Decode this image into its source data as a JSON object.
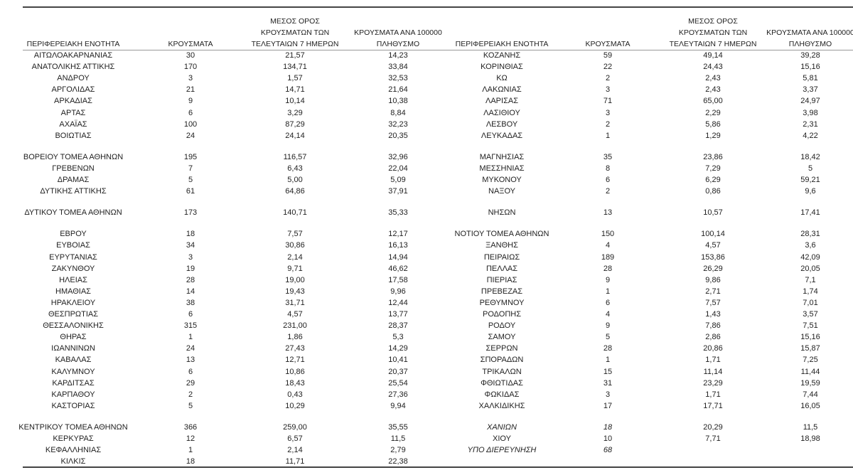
{
  "left_table": {
    "header": [
      [
        "ΠΕΡΙΦΕΡΕΙΑΚΗ ΕΝΟΤΗΤΑ"
      ],
      [
        "ΚΡΟΥΣΜΑΤΑ"
      ],
      [
        "ΜΕΣΟΣ ΟΡΟΣ",
        "ΚΡΟΥΣΜΑΤΩΝ ΤΩΝ",
        "ΤΕΛΕΥΤΑΙΩΝ 7 ΗΜΕΡΩΝ"
      ],
      [
        "ΚΡΟΥΣΜΑΤΑ ΑΝΑ 100000",
        "ΠΛΗΘΥΣΜΟ"
      ]
    ],
    "rows": [
      [
        "ΑΙΤΩΛΟΑΚΑΡΝΑΝΙΑΣ",
        "30",
        "21,57",
        "14,23"
      ],
      [
        "ΑΝΑΤΟΛΙΚΗΣ ΑΤΤΙΚΗΣ",
        "170",
        "134,71",
        "33,84"
      ],
      [
        "ΑΝΔΡΟΥ",
        "3",
        "1,57",
        "32,53"
      ],
      [
        "ΑΡΓΟΛΙΔΑΣ",
        "21",
        "14,71",
        "21,64"
      ],
      [
        "ΑΡΚΑΔΙΑΣ",
        "9",
        "10,14",
        "10,38"
      ],
      [
        "ΑΡΤΑΣ",
        "6",
        "3,29",
        "8,84"
      ],
      [
        "ΑΧΑΪΑΣ",
        "100",
        "87,29",
        "32,23"
      ],
      [
        "ΒΟΙΩΤΙΑΣ",
        "24",
        "24,14",
        "20,35"
      ],
      [
        "ΒΟΡΕΙΟΥ ΤΟΜΕΑ ΑΘΗΝΩΝ",
        "195",
        "116,57",
        "32,96"
      ],
      [
        "ΓΡΕΒΕΝΩΝ",
        "7",
        "6,43",
        "22,04"
      ],
      [
        "ΔΡΑΜΑΣ",
        "5",
        "5,00",
        "5,09"
      ],
      [
        "ΔΥΤΙΚΗΣ ΑΤΤΙΚΗΣ",
        "61",
        "64,86",
        "37,91"
      ],
      [
        "ΔΥΤΙΚΟΥ ΤΟΜΕΑ ΑΘΗΝΩΝ",
        "173",
        "140,71",
        "35,33"
      ],
      [
        "ΕΒΡΟΥ",
        "18",
        "7,57",
        "12,17"
      ],
      [
        "ΕΥΒΟΙΑΣ",
        "34",
        "30,86",
        "16,13"
      ],
      [
        "ΕΥΡΥΤΑΝΙΑΣ",
        "3",
        "2,14",
        "14,94"
      ],
      [
        "ΖΑΚΥΝΘΟΥ",
        "19",
        "9,71",
        "46,62"
      ],
      [
        "ΗΛΕΙΑΣ",
        "28",
        "19,00",
        "17,58"
      ],
      [
        "ΗΜΑΘΙΑΣ",
        "14",
        "19,43",
        "9,96"
      ],
      [
        "ΗΡΑΚΛΕΙΟΥ",
        "38",
        "31,71",
        "12,44"
      ],
      [
        "ΘΕΣΠΡΩΤΙΑΣ",
        "6",
        "4,57",
        "13,77"
      ],
      [
        "ΘΕΣΣΑΛΟΝΙΚΗΣ",
        "315",
        "231,00",
        "28,37"
      ],
      [
        "ΘΗΡΑΣ",
        "1",
        "1,86",
        "5,3"
      ],
      [
        "ΙΩΑΝΝΙΝΩΝ",
        "24",
        "27,43",
        "14,29"
      ],
      [
        "ΚΑΒΑΛΑΣ",
        "13",
        "12,71",
        "10,41"
      ],
      [
        "ΚΑΛΥΜΝΟΥ",
        "6",
        "10,86",
        "20,37"
      ],
      [
        "ΚΑΡΔΙΤΣΑΣ",
        "29",
        "18,43",
        "25,54"
      ],
      [
        "ΚΑΡΠΑΘΟΥ",
        "2",
        "0,43",
        "27,36"
      ],
      [
        "ΚΑΣΤΟΡΙΑΣ",
        "5",
        "10,29",
        "9,94"
      ],
      [
        "ΚΕΝΤΡΙΚΟΥ ΤΟΜΕΑ ΑΘΗΝΩΝ",
        "366",
        "259,00",
        "35,55"
      ],
      [
        "ΚΕΡΚΥΡΑΣ",
        "12",
        "6,57",
        "11,5"
      ],
      [
        "ΚΕΦΑΛΛΗΝΙΑΣ",
        "1",
        "2,14",
        "2,79"
      ],
      [
        "ΚΙΛΚΙΣ",
        "18",
        "11,71",
        "22,38"
      ]
    ]
  },
  "right_table": {
    "header": [
      [
        "ΠΕΡΙΦΕΡΕΙΑΚΗ ΕΝΟΤΗΤΑ"
      ],
      [
        "ΚΡΟΥΣΜΑΤΑ"
      ],
      [
        "ΜΕΣΟΣ ΟΡΟΣ",
        "ΚΡΟΥΣΜΑΤΩΝ ΤΩΝ",
        "ΤΕΛΕΥΤΑΙΩΝ 7 ΗΜΕΡΩΝ"
      ],
      [
        "ΚΡΟΥΣΜΑΤΑ ΑΝΑ 100000",
        "ΠΛΗΘΥΣΜΟ"
      ]
    ],
    "rows": [
      [
        "ΚΟΖΑΝΗΣ",
        "59",
        "49,14",
        "39,28"
      ],
      [
        "ΚΟΡΙΝΘΙΑΣ",
        "22",
        "24,43",
        "15,16"
      ],
      [
        "ΚΩ",
        "2",
        "2,43",
        "5,81"
      ],
      [
        "ΛΑΚΩΝΙΑΣ",
        "3",
        "2,43",
        "3,37"
      ],
      [
        "ΛΑΡΙΣΑΣ",
        "71",
        "65,00",
        "24,97"
      ],
      [
        "ΛΑΣΙΘΙΟΥ",
        "3",
        "2,29",
        "3,98"
      ],
      [
        "ΛΕΣΒΟΥ",
        "2",
        "5,86",
        "2,31"
      ],
      [
        "ΛΕΥΚΑΔΑΣ",
        "1",
        "1,29",
        "4,22"
      ],
      [
        "ΜΑΓΝΗΣΙΑΣ",
        "35",
        "23,86",
        "18,42"
      ],
      [
        "ΜΕΣΣΗΝΙΑΣ",
        "8",
        "7,29",
        "5"
      ],
      [
        "ΜΥΚΟΝΟΥ",
        "6",
        "6,29",
        "59,21"
      ],
      [
        "ΝΑΞΟΥ",
        "2",
        "0,86",
        "9,6"
      ],
      [
        "ΝΗΣΩΝ",
        "13",
        "10,57",
        "17,41"
      ],
      [
        "ΝΟΤΙΟΥ ΤΟΜΕΑ ΑΘΗΝΩΝ",
        "150",
        "100,14",
        "28,31"
      ],
      [
        "ΞΑΝΘΗΣ",
        "4",
        "4,57",
        "3,6"
      ],
      [
        "ΠΕΙΡΑΙΩΣ",
        "189",
        "153,86",
        "42,09"
      ],
      [
        "ΠΕΛΛΑΣ",
        "28",
        "26,29",
        "20,05"
      ],
      [
        "ΠΙΕΡΙΑΣ",
        "9",
        "9,86",
        "7,1"
      ],
      [
        "ΠΡΕΒΕΖΑΣ",
        "1",
        "2,71",
        "1,74"
      ],
      [
        "ΡΕΘΥΜΝΟΥ",
        "6",
        "7,57",
        "7,01"
      ],
      [
        "ΡΟΔΟΠΗΣ",
        "4",
        "1,43",
        "3,57"
      ],
      [
        "ΡΟΔΟΥ",
        "9",
        "7,86",
        "7,51"
      ],
      [
        "ΣΑΜΟΥ",
        "5",
        "2,86",
        "15,16"
      ],
      [
        "ΣΕΡΡΩΝ",
        "28",
        "20,86",
        "15,87"
      ],
      [
        "ΣΠΟΡΑΔΩΝ",
        "1",
        "1,71",
        "7,25"
      ],
      [
        "ΤΡΙΚΑΛΩΝ",
        "15",
        "11,14",
        "11,44"
      ],
      [
        "ΦΘΙΩΤΙΔΑΣ",
        "31",
        "23,29",
        "19,59"
      ],
      [
        "ΦΩΚΙΔΑΣ",
        "3",
        "1,71",
        "7,44"
      ],
      [
        "ΧΑΛΚΙΔΙΚΗΣ",
        "17",
        "17,71",
        "16,05"
      ],
      [
        "ΧΑΝΙΩΝ",
        "18",
        "20,29",
        "11,5"
      ],
      [
        "ΧΙΟΥ",
        "10",
        "7,71",
        "18,98"
      ],
      [
        "ΥΠΟ ΔΙΕΡΕΥΝΗΣΗ",
        "68"
      ]
    ]
  }
}
